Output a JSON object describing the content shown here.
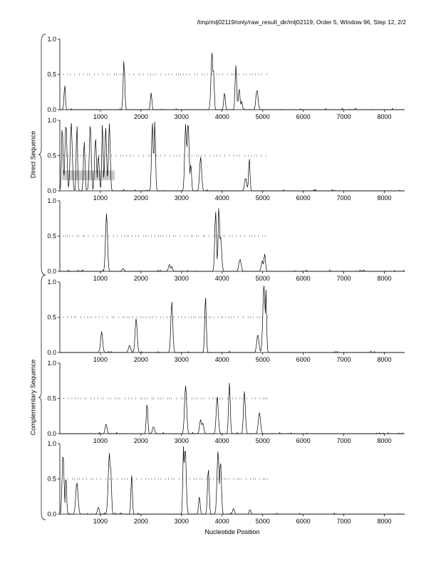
{
  "title": "/tmp/mlj02119/only/raw_result_dir/mlj02119, Order 5, Window 96, Step 12, 2/2",
  "xlabel": "Nucleotide Position",
  "groups": [
    {
      "label": "Direct Sequence"
    },
    {
      "label": "Complementary Sequence"
    }
  ],
  "chart_data": {
    "type": "line",
    "title": "/tmp/mlj02119/only/raw_result_dir/mlj02119, Order 5, Window 96, Step 12, 2/2",
    "xlabel": "Nucleotide Position",
    "ylabel": "",
    "xlim": [
      0,
      8500
    ],
    "ylim": [
      0,
      1
    ],
    "xticks": [
      1000,
      2000,
      3000,
      4000,
      5000,
      6000,
      7000,
      8000
    ],
    "yticks": [
      "0.0",
      "0.5",
      "1.0"
    ],
    "grid": false,
    "hash_line_extent": [
      100,
      5150
    ],
    "panels": [
      {
        "group": "Direct Sequence",
        "frame": 1,
        "peaks": [
          [
            120,
            0.35
          ],
          [
            1580,
            0.7
          ],
          [
            2250,
            0.24
          ],
          [
            3750,
            0.82
          ],
          [
            3790,
            0.55
          ],
          [
            4060,
            0.24
          ],
          [
            4340,
            0.63
          ],
          [
            4420,
            0.3
          ],
          [
            4480,
            0.12
          ],
          [
            4860,
            0.28
          ]
        ]
      },
      {
        "group": "Direct Sequence",
        "frame": 2,
        "peaks": [
          [
            60,
            0.92
          ],
          [
            150,
            0.95
          ],
          [
            280,
            0.97
          ],
          [
            420,
            0.96
          ],
          [
            600,
            0.7
          ],
          [
            750,
            0.95
          ],
          [
            880,
            0.75
          ],
          [
            950,
            0.5
          ],
          [
            1050,
            0.98
          ],
          [
            1130,
            0.9
          ],
          [
            1220,
            0.96
          ],
          [
            2280,
            0.98
          ],
          [
            2340,
            0.99
          ],
          [
            3100,
            0.95
          ],
          [
            3160,
            0.97
          ],
          [
            3230,
            0.4
          ],
          [
            3470,
            0.48
          ],
          [
            4580,
            0.18
          ],
          [
            4670,
            0.47
          ]
        ],
        "shaded_region": {
          "x": [
            60,
            1350
          ],
          "y": [
            0.15,
            0.29
          ]
        }
      },
      {
        "group": "Direct Sequence",
        "frame": 3,
        "peaks": [
          [
            1150,
            0.82
          ],
          [
            1560,
            0.04
          ],
          [
            2700,
            0.1
          ],
          [
            2760,
            0.07
          ],
          [
            3840,
            0.85
          ],
          [
            3920,
            0.97
          ],
          [
            3960,
            0.5
          ],
          [
            4440,
            0.17
          ],
          [
            4990,
            0.15
          ],
          [
            5050,
            0.25
          ]
        ]
      },
      {
        "group": "Complementary Sequence",
        "frame": 1,
        "peaks": [
          [
            1030,
            0.3
          ],
          [
            1720,
            0.1
          ],
          [
            1880,
            0.48
          ],
          [
            2760,
            0.72
          ],
          [
            3590,
            0.8
          ],
          [
            4880,
            0.25
          ],
          [
            5030,
            0.95
          ],
          [
            5080,
            0.9
          ]
        ]
      },
      {
        "group": "Complementary Sequence",
        "frame": 2,
        "peaks": [
          [
            1140,
            0.14
          ],
          [
            2150,
            0.44
          ],
          [
            2310,
            0.1
          ],
          [
            3100,
            0.68
          ],
          [
            3470,
            0.2
          ],
          [
            3520,
            0.15
          ],
          [
            3880,
            0.52
          ],
          [
            4180,
            0.72
          ],
          [
            4550,
            0.6
          ],
          [
            4920,
            0.3
          ]
        ]
      },
      {
        "group": "Complementary Sequence",
        "frame": 3,
        "peaks": [
          [
            80,
            0.85
          ],
          [
            150,
            0.55
          ],
          [
            420,
            0.45
          ],
          [
            950,
            0.1
          ],
          [
            1220,
            0.87
          ],
          [
            1250,
            0.7
          ],
          [
            1770,
            0.55
          ],
          [
            3050,
            0.99
          ],
          [
            3090,
            0.95
          ],
          [
            3440,
            0.25
          ],
          [
            3660,
            0.65
          ],
          [
            3900,
            0.9
          ],
          [
            3960,
            0.75
          ],
          [
            4280,
            0.08
          ],
          [
            4690,
            0.06
          ]
        ]
      }
    ]
  }
}
